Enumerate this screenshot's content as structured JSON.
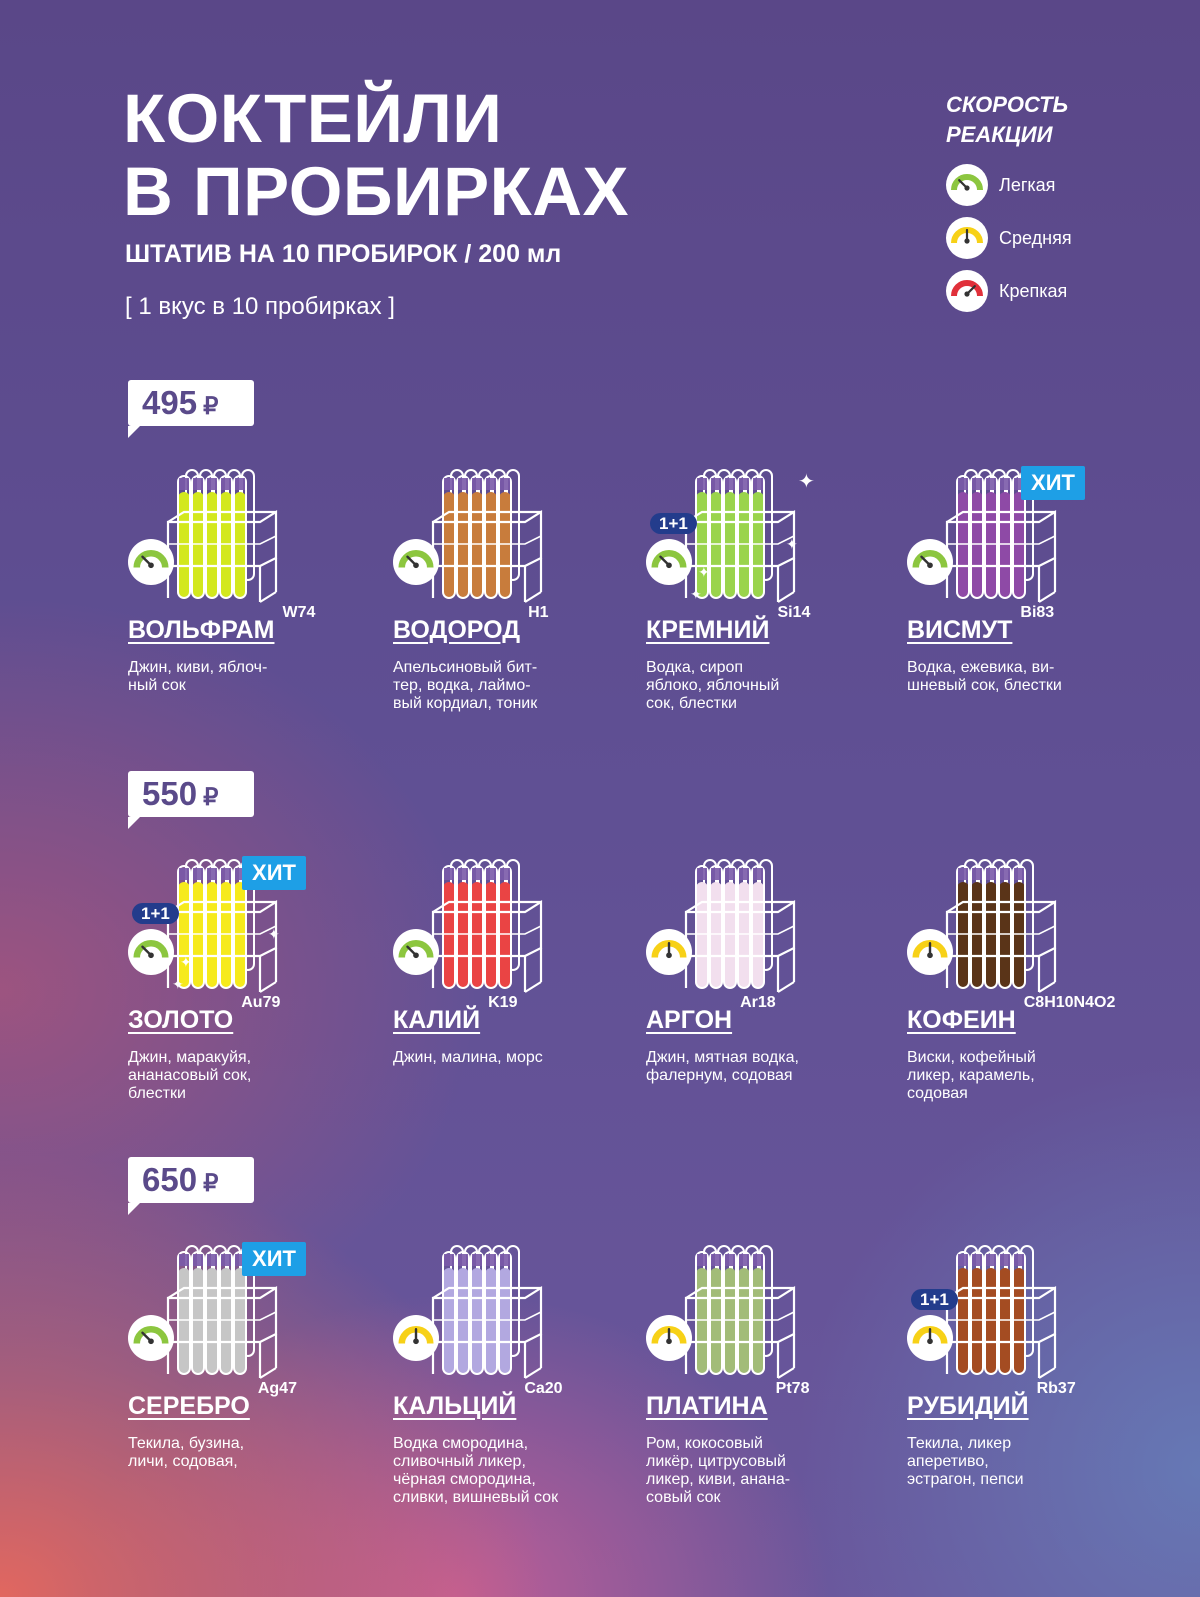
{
  "header": {
    "title_line1": "КОКТЕЙЛИ",
    "title_line2": "В ПРОБИРКАХ",
    "subtitle": "ШТАТИВ НА 10 ПРОБИРОК / 200 мл",
    "note": "[ 1 вкус в 10 пробирках ]"
  },
  "legend": {
    "title_line1": "СКОРОСТЬ",
    "title_line2": "РЕАКЦИИ",
    "items": [
      {
        "label": "Легкая",
        "color": "#8cc63f",
        "icon": "gauge-light-icon"
      },
      {
        "label": "Средняя",
        "color": "#f7d117",
        "icon": "gauge-medium-icon"
      },
      {
        "label": "Крепкая",
        "color": "#e0303a",
        "icon": "gauge-strong-icon"
      }
    ]
  },
  "tiers": [
    {
      "price": "495",
      "currency": "₽"
    },
    {
      "price": "550",
      "currency": "₽"
    },
    {
      "price": "650",
      "currency": "₽"
    }
  ],
  "cocktails": [
    {
      "name": "ВОЛЬФРАМ",
      "symbol": "W74",
      "desc": "Джин, киви, яблоч-\nный сок",
      "liquid": "#d3e81e",
      "strength": "light",
      "promo": "",
      "hit": "",
      "sparkles": false
    },
    {
      "name": "ВОДОРОД",
      "symbol": "H1",
      "desc": "Апельсиновый бит-\nтер, водка, лаймо-\nвый кордиал, тоник",
      "liquid": "#c87c3c",
      "strength": "light",
      "promo": "",
      "hit": "",
      "sparkles": false
    },
    {
      "name": "КРЕМНИЙ",
      "symbol": "Si14",
      "desc": "Водка, сироп\nяблоко, яблочный\nсок, блестки",
      "liquid": "#9ad44c",
      "strength": "light",
      "promo": "1+1",
      "hit": "",
      "sparkles": true
    },
    {
      "name": "ВИСМУТ",
      "symbol": "Bi83",
      "desc": "Водка, ежевика, ви-\nшневый сок, блестки",
      "liquid": "#8e4aa6",
      "strength": "light",
      "promo": "",
      "hit": "ХИТ",
      "sparkles": false
    },
    {
      "name": "ЗОЛОТО",
      "symbol": "Au79",
      "desc": "Джин, маракуйя,\nананасовый сок,\nблестки",
      "liquid": "#f6ea1c",
      "strength": "light",
      "promo": "1+1",
      "hit": "ХИТ",
      "sparkles": true
    },
    {
      "name": "КАЛИЙ",
      "symbol": "K19",
      "desc": "Джин, малина, морс",
      "liquid": "#ea4444",
      "strength": "light",
      "promo": "",
      "hit": "",
      "sparkles": false
    },
    {
      "name": "АРГОН",
      "symbol": "Ar18",
      "desc": "Джин, мятная водка,\nфалернум, содовая",
      "liquid": "#f2dfee",
      "strength": "medium",
      "promo": "",
      "hit": "",
      "sparkles": false
    },
    {
      "name": "КОФЕИН",
      "symbol": "C8H10N4O2",
      "desc": "Виски, кофейный\nликер, карамель,\nсодовая",
      "liquid": "#5a3418",
      "strength": "medium",
      "promo": "",
      "hit": "",
      "sparkles": false
    },
    {
      "name": "СЕРЕБРО",
      "symbol": "Ag47",
      "desc": "Текила, бузина,\nличи, содовая,",
      "liquid": "#c6c6c6",
      "strength": "light",
      "promo": "",
      "hit": "ХИТ",
      "sparkles": false
    },
    {
      "name": "КАЛЬЦИЙ",
      "symbol": "Ca20",
      "desc": "Водка смородина,\nсливочный ликер,\nчёрная смородина,\nсливки, вишневый сок",
      "liquid": "#b2a8e0",
      "strength": "medium",
      "promo": "",
      "hit": "",
      "sparkles": false
    },
    {
      "name": "ПЛАТИНА",
      "symbol": "Pt78",
      "desc": "Ром, кокосовый\nликёр, цитрусовый\nликер, киви, анана-\nсовый сок",
      "liquid": "#a2bc78",
      "strength": "medium",
      "promo": "",
      "hit": "",
      "sparkles": false
    },
    {
      "name": "РУБИДИЙ",
      "symbol": "Rb37",
      "desc": "Текила, ликер\nаперетиво,\nэстрагон, пепси",
      "liquid": "#a44c22",
      "strength": "medium",
      "promo": "1+1",
      "hit": "",
      "sparkles": false
    }
  ]
}
